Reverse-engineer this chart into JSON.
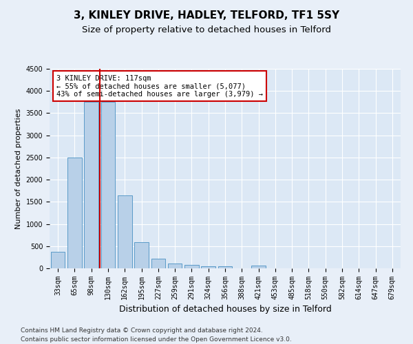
{
  "title": "3, KINLEY DRIVE, HADLEY, TELFORD, TF1 5SY",
  "subtitle": "Size of property relative to detached houses in Telford",
  "xlabel": "Distribution of detached houses by size in Telford",
  "ylabel": "Number of detached properties",
  "categories": [
    "33sqm",
    "65sqm",
    "98sqm",
    "130sqm",
    "162sqm",
    "195sqm",
    "227sqm",
    "259sqm",
    "291sqm",
    "324sqm",
    "356sqm",
    "388sqm",
    "421sqm",
    "453sqm",
    "485sqm",
    "518sqm",
    "550sqm",
    "582sqm",
    "614sqm",
    "647sqm",
    "679sqm"
  ],
  "values": [
    370,
    2500,
    3750,
    3750,
    1650,
    590,
    220,
    110,
    70,
    50,
    40,
    0,
    60,
    0,
    0,
    0,
    0,
    0,
    0,
    0,
    0
  ],
  "bar_color": "#b8d0e8",
  "bar_edge_color": "#5a9ac8",
  "vline_color": "#cc0000",
  "vline_pos": 2.5,
  "annotation_text": "3 KINLEY DRIVE: 117sqm\n← 55% of detached houses are smaller (5,077)\n43% of semi-detached houses are larger (3,979) →",
  "annotation_box_facecolor": "#ffffff",
  "annotation_box_edgecolor": "#cc0000",
  "footnote_line1": "Contains HM Land Registry data © Crown copyright and database right 2024.",
  "footnote_line2": "Contains public sector information licensed under the Open Government Licence v3.0.",
  "ylim": [
    0,
    4500
  ],
  "yticks": [
    0,
    500,
    1000,
    1500,
    2000,
    2500,
    3000,
    3500,
    4000,
    4500
  ],
  "bg_color": "#e8eff8",
  "plot_bg_color": "#dce8f5",
  "grid_color": "#ffffff",
  "title_fontsize": 11,
  "subtitle_fontsize": 9.5,
  "tick_fontsize": 7,
  "ylabel_fontsize": 8,
  "xlabel_fontsize": 9
}
